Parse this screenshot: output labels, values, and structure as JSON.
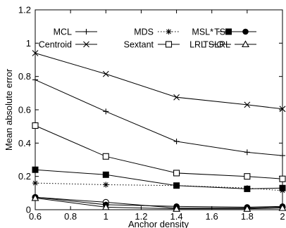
{
  "chart_data": {
    "type": "line",
    "title": "",
    "xlabel": "Anchor density",
    "ylabel": "Mean absolute error",
    "xlim": [
      0.6,
      2.0
    ],
    "ylim": [
      0,
      1.2
    ],
    "xticks": [
      "0.6",
      "0.8",
      "1",
      "1.2",
      "1.4",
      "1.6",
      "1.8",
      "2"
    ],
    "yticks": [
      "0",
      "0.2",
      "0.4",
      "0.6",
      "0.8",
      "1",
      "1.2"
    ],
    "grid": false,
    "legend_position": "top-right",
    "x": [
      0.6,
      1.0,
      1.4,
      1.8,
      2.0
    ],
    "series": [
      {
        "name": "MCL",
        "marker": "plus",
        "dash": "solid",
        "values": [
          0.78,
          0.59,
          0.41,
          0.345,
          0.325
        ]
      },
      {
        "name": "Centroid",
        "marker": "cross",
        "dash": "solid",
        "values": [
          0.94,
          0.815,
          0.675,
          0.63,
          0.605
        ]
      },
      {
        "name": "MDS",
        "marker": "star",
        "dash": "dotted",
        "values": [
          0.16,
          0.15,
          0.145,
          0.13,
          0.115
        ]
      },
      {
        "name": "Sextant",
        "marker": "square-open",
        "dash": "solid",
        "values": [
          0.505,
          0.32,
          0.22,
          0.2,
          0.185
        ]
      },
      {
        "name": "MSL*",
        "marker": "square-filled",
        "dash": "solid",
        "values": [
          0.24,
          0.21,
          0.145,
          0.125,
          0.13
        ]
      },
      {
        "name": "LRL",
        "marker": "circle-open",
        "dash": "solid",
        "values": [
          0.075,
          0.045,
          0.01,
          0.01,
          0.015
        ]
      },
      {
        "name": "TSL",
        "marker": "circle-filled",
        "dash": "solid",
        "values": [
          0.075,
          0.03,
          0.02,
          0.015,
          0.02
        ]
      },
      {
        "name": "TSLRL",
        "marker": "triangle-open",
        "dash": "solid",
        "values": [
          0.07,
          0.015,
          0.005,
          0.005,
          0.01
        ]
      }
    ]
  }
}
